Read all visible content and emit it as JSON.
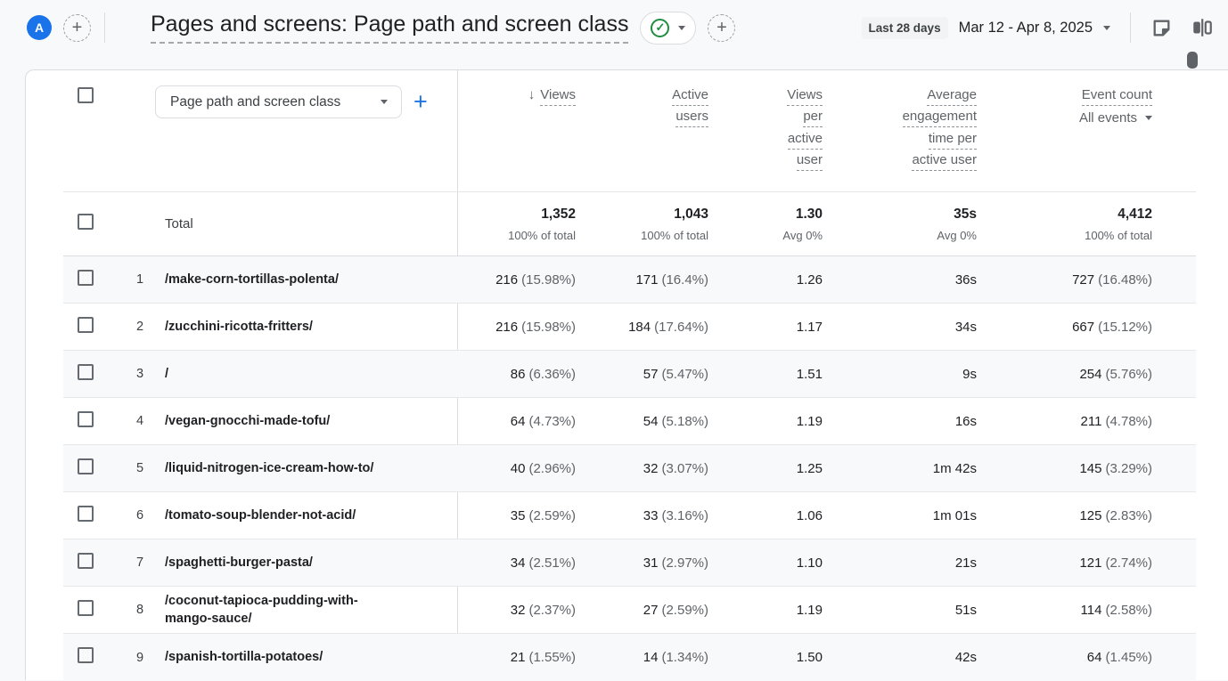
{
  "colors": {
    "accent_blue": "#1a73e8",
    "check_green": "#1e8e3e",
    "text_dark": "#202124",
    "text_gray": "#5f6368",
    "stripe": "#f8f9fa",
    "border": "#dadce0"
  },
  "topbar": {
    "avatar_letter": "A",
    "add_report_label": "+",
    "title": "Pages and screens: Page path and screen class",
    "add_collaborator_label": "+",
    "date_badge": "Last 28 days",
    "date_range": "Mar 12 - Apr 8, 2025"
  },
  "table": {
    "dimension_dropdown": "Page path and screen class",
    "add_dimension_label": "+",
    "columns": {
      "views": {
        "label": "Views",
        "lines": [
          "Views"
        ],
        "sorted_desc": true
      },
      "active_users": {
        "label": "Active users",
        "lines": [
          "Active",
          "users"
        ]
      },
      "views_per_active_user": {
        "label": "Views per active user",
        "lines": [
          "Views",
          "per",
          "active",
          "user"
        ]
      },
      "avg_engagement": {
        "label": "Average engagement time per active user",
        "lines": [
          "Average",
          "engagement",
          "time per",
          "active user"
        ]
      },
      "event_count": {
        "label": "Event count",
        "lines": [
          "Event count"
        ],
        "filter": "All events"
      }
    },
    "total": {
      "label": "Total",
      "metrics": [
        {
          "value": "1,352",
          "sub": "100% of total"
        },
        {
          "value": "1,043",
          "sub": "100% of total"
        },
        {
          "value": "1.30",
          "sub": "Avg 0%"
        },
        {
          "value": "35s",
          "sub": "Avg 0%"
        },
        {
          "value": "4,412",
          "sub": "100% of total"
        }
      ]
    },
    "rows": [
      {
        "rank": "1",
        "path": "/make-corn-tortillas-polenta/",
        "views": "216",
        "views_pct": "(15.98%)",
        "active_users": "171",
        "active_users_pct": "(16.4%)",
        "views_per_user": "1.26",
        "engagement": "36s",
        "events": "727",
        "events_pct": "(16.48%)"
      },
      {
        "rank": "2",
        "path": "/zucchini-ricotta-fritters/",
        "views": "216",
        "views_pct": "(15.98%)",
        "active_users": "184",
        "active_users_pct": "(17.64%)",
        "views_per_user": "1.17",
        "engagement": "34s",
        "events": "667",
        "events_pct": "(15.12%)"
      },
      {
        "rank": "3",
        "path": "/",
        "views": "86",
        "views_pct": "(6.36%)",
        "active_users": "57",
        "active_users_pct": "(5.47%)",
        "views_per_user": "1.51",
        "engagement": "9s",
        "events": "254",
        "events_pct": "(5.76%)"
      },
      {
        "rank": "4",
        "path": "/vegan-gnocchi-made-tofu/",
        "views": "64",
        "views_pct": "(4.73%)",
        "active_users": "54",
        "active_users_pct": "(5.18%)",
        "views_per_user": "1.19",
        "engagement": "16s",
        "events": "211",
        "events_pct": "(4.78%)"
      },
      {
        "rank": "5",
        "path": "/liquid-nitrogen-ice-cream-how-to/",
        "views": "40",
        "views_pct": "(2.96%)",
        "active_users": "32",
        "active_users_pct": "(3.07%)",
        "views_per_user": "1.25",
        "engagement": "1m 42s",
        "events": "145",
        "events_pct": "(3.29%)"
      },
      {
        "rank": "6",
        "path": "/tomato-soup-blender-not-acid/",
        "views": "35",
        "views_pct": "(2.59%)",
        "active_users": "33",
        "active_users_pct": "(3.16%)",
        "views_per_user": "1.06",
        "engagement": "1m 01s",
        "events": "125",
        "events_pct": "(2.83%)"
      },
      {
        "rank": "7",
        "path": "/spaghetti-burger-pasta/",
        "views": "34",
        "views_pct": "(2.51%)",
        "active_users": "31",
        "active_users_pct": "(2.97%)",
        "views_per_user": "1.10",
        "engagement": "21s",
        "events": "121",
        "events_pct": "(2.74%)"
      },
      {
        "rank": "8",
        "path": "/coconut-tapioca-pudding-with-\nmango-sauce/",
        "views": "32",
        "views_pct": "(2.37%)",
        "active_users": "27",
        "active_users_pct": "(2.59%)",
        "views_per_user": "1.19",
        "engagement": "51s",
        "events": "114",
        "events_pct": "(2.58%)"
      },
      {
        "rank": "9",
        "path": "/spanish-tortilla-potatoes/",
        "views": "21",
        "views_pct": "(1.55%)",
        "active_users": "14",
        "active_users_pct": "(1.34%)",
        "views_per_user": "1.50",
        "engagement": "42s",
        "events": "64",
        "events_pct": "(1.45%)"
      }
    ]
  }
}
